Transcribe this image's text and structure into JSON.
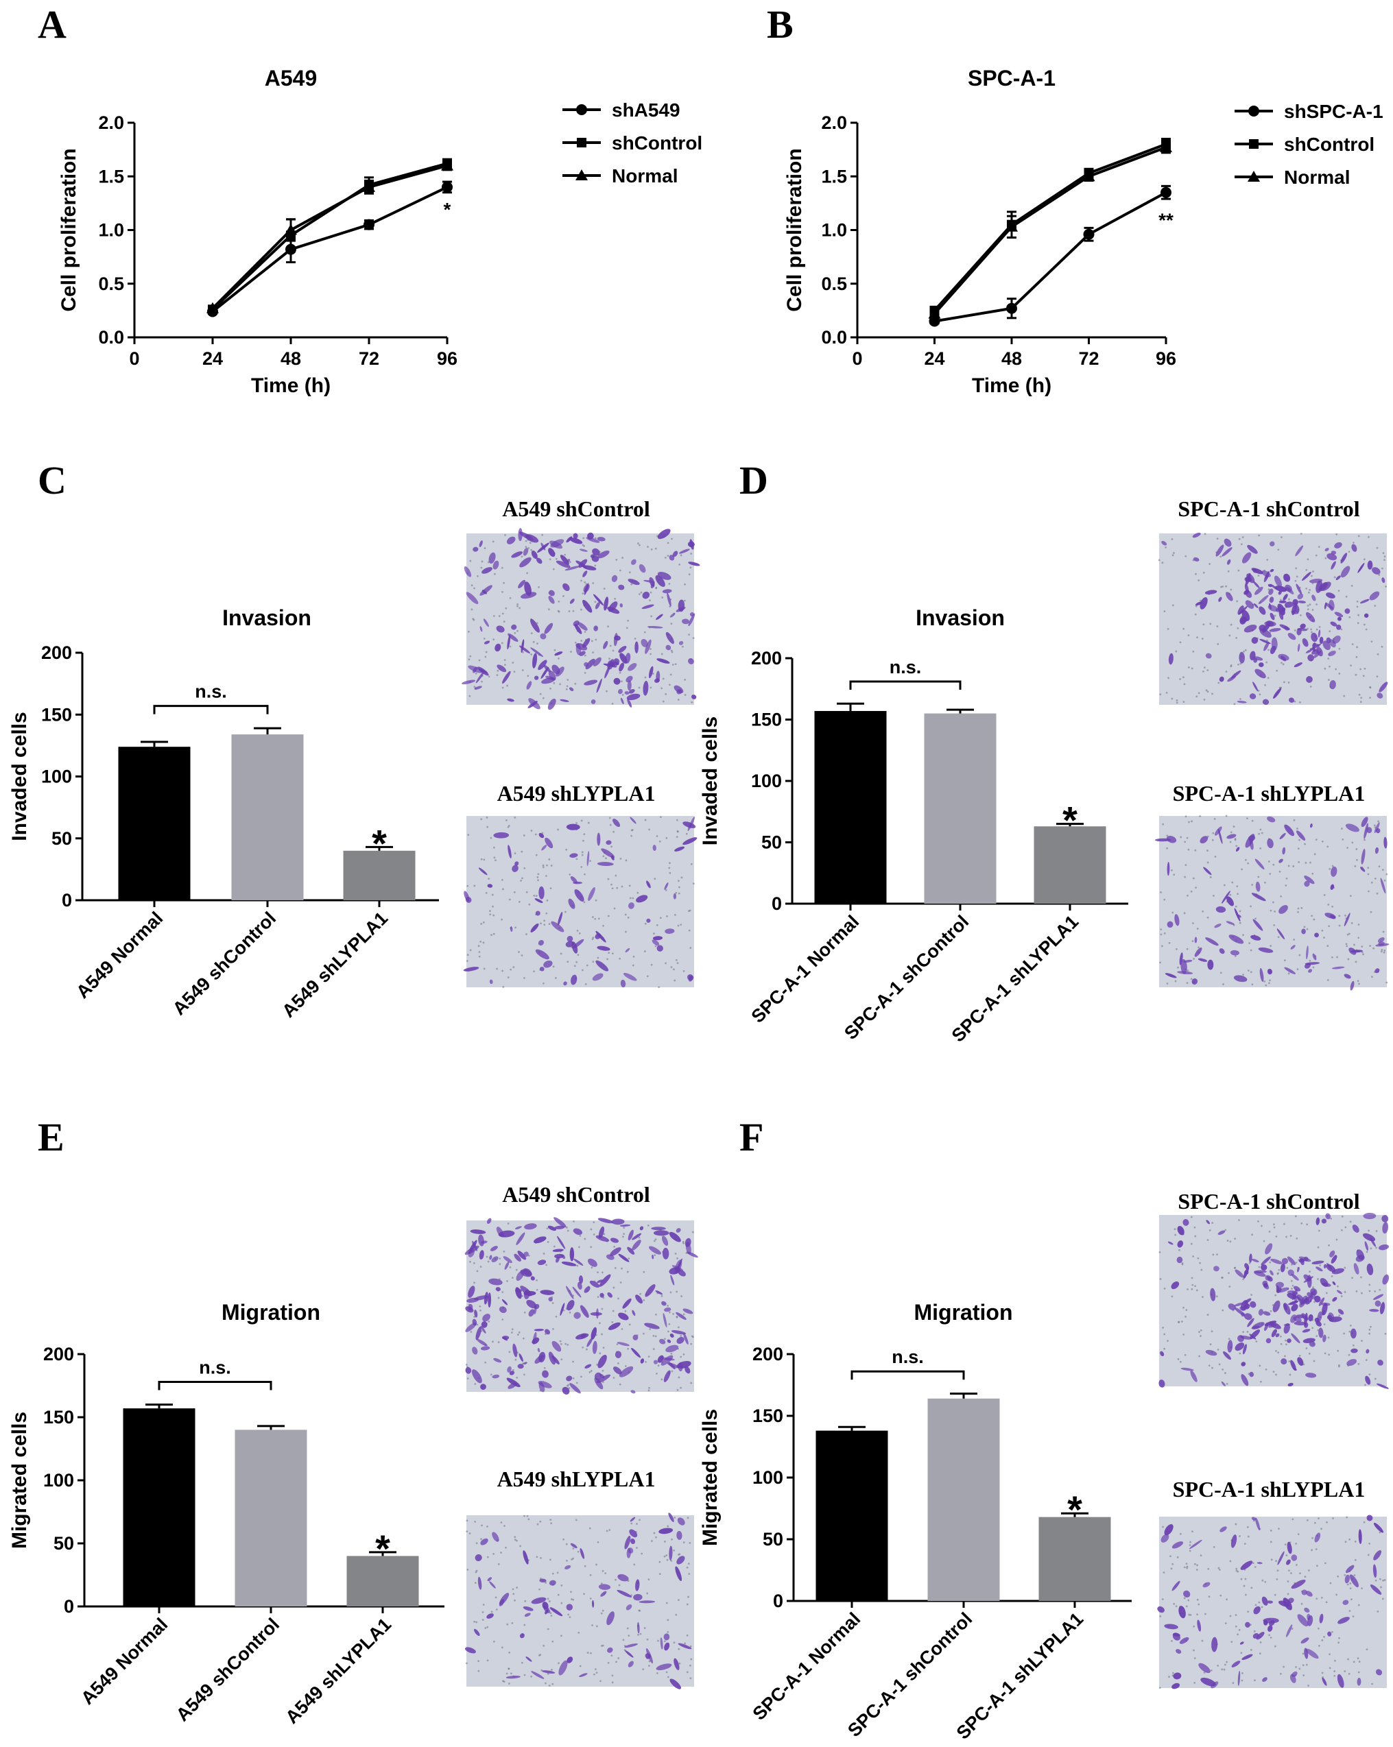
{
  "panels": {
    "A": "A",
    "B": "B",
    "C": "C",
    "D": "D",
    "E": "E",
    "F": "F"
  },
  "micrographs": {
    "c_top": "A549 shControl",
    "c_bottom": "A549 shLYPLA1",
    "d_top": "SPC-A-1 shControl",
    "d_bottom": "SPC-A-1 shLYPLA1",
    "e_top": "A549 shControl",
    "e_bottom": "A549 shLYPLA1",
    "f_top": "SPC-A-1 shControl",
    "f_bottom": "SPC-A-1 shLYPLA1",
    "stain_color": "#6a3fb0",
    "background_color": "#cfd3de"
  },
  "chart_data": [
    {
      "panel": "A",
      "type": "line",
      "title": "A549",
      "xlabel": "Time (h)",
      "ylabel": "Cell proliferation",
      "xlim": [
        0,
        96
      ],
      "ylim": [
        0,
        2.0
      ],
      "xticks": [
        "0",
        "24",
        "48",
        "72",
        "96"
      ],
      "yticks": [
        "0.0",
        "0.5",
        "1.0",
        "1.5",
        "2.0"
      ],
      "x": [
        24,
        48,
        72,
        96
      ],
      "series": [
        {
          "name": "shA549",
          "marker": "circle",
          "values": [
            0.24,
            0.82,
            1.05,
            1.4
          ],
          "errors": [
            0.02,
            0.12,
            0.04,
            0.05
          ]
        },
        {
          "name": "shControl",
          "marker": "square",
          "values": [
            0.26,
            0.95,
            1.42,
            1.62
          ],
          "errors": [
            0.02,
            0.15,
            0.07,
            0.04
          ]
        },
        {
          "name": "Normal",
          "marker": "triangle",
          "values": [
            0.27,
            1.0,
            1.4,
            1.6
          ],
          "errors": [
            0.02,
            0.1,
            0.06,
            0.04
          ]
        }
      ],
      "annotations": [
        {
          "x": 96,
          "y": 1.22,
          "text": "*"
        }
      ],
      "legend": "right"
    },
    {
      "panel": "B",
      "type": "line",
      "title": "SPC-A-1",
      "xlabel": "Time (h)",
      "ylabel": "Cell proliferation",
      "xlim": [
        0,
        96
      ],
      "ylim": [
        0,
        2.0
      ],
      "xticks": [
        "0",
        "24",
        "48",
        "72",
        "96"
      ],
      "yticks": [
        "0.0",
        "0.5",
        "1.0",
        "1.5",
        "2.0"
      ],
      "x": [
        24,
        48,
        72,
        96
      ],
      "series": [
        {
          "name": "shSPC-A-1",
          "marker": "circle",
          "values": [
            0.15,
            0.27,
            0.96,
            1.35
          ],
          "errors": [
            0.02,
            0.09,
            0.06,
            0.06
          ]
        },
        {
          "name": "shControl",
          "marker": "square",
          "values": [
            0.25,
            1.05,
            1.53,
            1.8
          ],
          "errors": [
            0.03,
            0.12,
            0.04,
            0.05
          ]
        },
        {
          "name": "Normal",
          "marker": "triangle",
          "values": [
            0.22,
            1.03,
            1.5,
            1.77
          ],
          "errors": [
            0.02,
            0.1,
            0.04,
            0.05
          ]
        }
      ],
      "annotations": [
        {
          "x": 96,
          "y": 1.12,
          "text": "**"
        }
      ],
      "legend": "right"
    },
    {
      "panel": "C",
      "type": "bar",
      "title": "Invasion",
      "ylabel": "Invaded cells",
      "ylim": [
        0,
        200
      ],
      "yticks": [
        "0",
        "50",
        "100",
        "150",
        "200"
      ],
      "categories": [
        "A549 Normal",
        "A549 shControl",
        "A549 shLYPLA1"
      ],
      "values": [
        124,
        134,
        40
      ],
      "errors": [
        4,
        5,
        3
      ],
      "colors": [
        "#000000",
        "#a3a4ad",
        "#848589"
      ],
      "bracket": {
        "from": 0,
        "to": 1,
        "text": "n.s."
      },
      "annotations": [
        {
          "bar": 2,
          "text": "*"
        }
      ]
    },
    {
      "panel": "D",
      "type": "bar",
      "title": "Invasion",
      "ylabel": "Invaded cells",
      "ylim": [
        0,
        200
      ],
      "yticks": [
        "0",
        "50",
        "100",
        "150",
        "200"
      ],
      "categories": [
        "SPC-A-1 Normal",
        "SPC-A-1 shControl",
        "SPC-A-1 shLYPLA1"
      ],
      "values": [
        157,
        155,
        63
      ],
      "errors": [
        6,
        3,
        2
      ],
      "colors": [
        "#000000",
        "#a3a4ad",
        "#848589"
      ],
      "bracket": {
        "from": 0,
        "to": 1,
        "text": "n.s."
      },
      "annotations": [
        {
          "bar": 2,
          "text": "*"
        }
      ]
    },
    {
      "panel": "E",
      "type": "bar",
      "title": "Migration",
      "ylabel": "Migrated cells",
      "ylim": [
        0,
        200
      ],
      "yticks": [
        "0",
        "50",
        "100",
        "150",
        "200"
      ],
      "categories": [
        "A549 Normal",
        "A549 shControl",
        "A549 shLYPLA1"
      ],
      "values": [
        157,
        140,
        40
      ],
      "errors": [
        3,
        3,
        3
      ],
      "colors": [
        "#000000",
        "#a3a4ad",
        "#848589"
      ],
      "bracket": {
        "from": 0,
        "to": 1,
        "text": "n.s."
      },
      "annotations": [
        {
          "bar": 2,
          "text": "*"
        }
      ]
    },
    {
      "panel": "F",
      "type": "bar",
      "title": "Migration",
      "ylabel": "Migrated cells",
      "ylim": [
        0,
        200
      ],
      "yticks": [
        "0",
        "50",
        "100",
        "150",
        "200"
      ],
      "categories": [
        "SPC-A-1 Normal",
        "SPC-A-1 shControl",
        "SPC-A-1 shLYPLA1"
      ],
      "values": [
        138,
        164,
        68
      ],
      "errors": [
        3,
        4,
        3
      ],
      "colors": [
        "#000000",
        "#a3a4ad",
        "#848589"
      ],
      "bracket": {
        "from": 0,
        "to": 1,
        "text": "n.s."
      },
      "annotations": [
        {
          "bar": 2,
          "text": "*"
        }
      ]
    }
  ]
}
